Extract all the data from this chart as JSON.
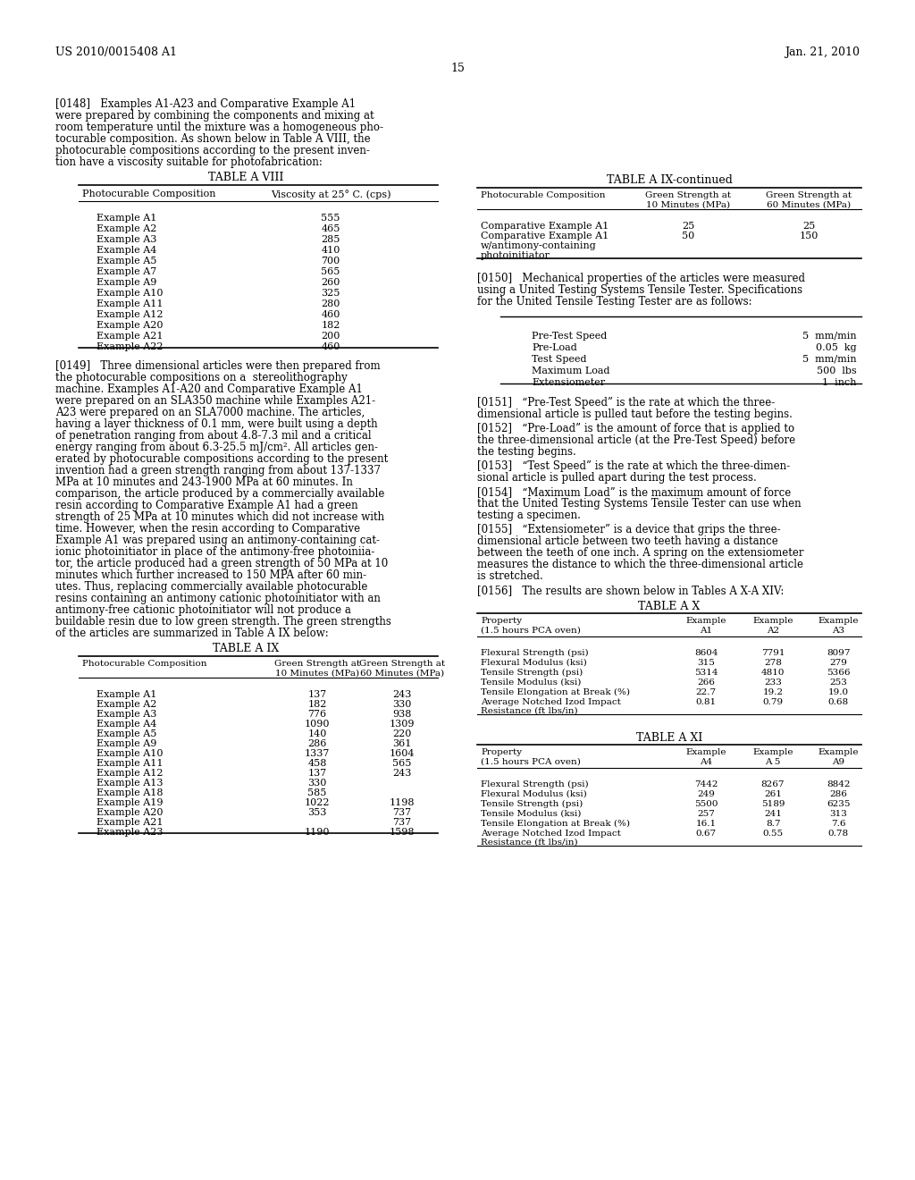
{
  "header_left": "US 2010/0015408 A1",
  "header_right": "Jan. 21, 2010",
  "page_number": "15",
  "bg_color": "#ffffff",
  "table_a8_title": "TABLE A VIII",
  "table_a8_col1": "Photocurable Composition",
  "table_a8_col2": "Viscosity at 25° C. (cps)",
  "table_a8_rows": [
    [
      "Example A1",
      "555"
    ],
    [
      "Example A2",
      "465"
    ],
    [
      "Example A3",
      "285"
    ],
    [
      "Example A4",
      "410"
    ],
    [
      "Example A5",
      "700"
    ],
    [
      "Example A7",
      "565"
    ],
    [
      "Example A9",
      "260"
    ],
    [
      "Example A10",
      "325"
    ],
    [
      "Example A11",
      "280"
    ],
    [
      "Example A12",
      "460"
    ],
    [
      "Example A20",
      "182"
    ],
    [
      "Example A21",
      "200"
    ],
    [
      "Example A22",
      "460"
    ]
  ],
  "table_a9_title": "TABLE A IX",
  "table_a9_rows": [
    [
      "Example A1",
      "137",
      "243"
    ],
    [
      "Example A2",
      "182",
      "330"
    ],
    [
      "Example A3",
      "776",
      "938"
    ],
    [
      "Example A4",
      "1090",
      "1309"
    ],
    [
      "Example A5",
      "140",
      "220"
    ],
    [
      "Example A9",
      "286",
      "361"
    ],
    [
      "Example A10",
      "1337",
      "1604"
    ],
    [
      "Example A11",
      "458",
      "565"
    ],
    [
      "Example A12",
      "137",
      "243"
    ],
    [
      "Example A13",
      "330",
      ""
    ],
    [
      "Example A18",
      "585",
      ""
    ],
    [
      "Example A19",
      "1022",
      "1198"
    ],
    [
      "Example A20",
      "353",
      "737"
    ],
    [
      "Example A21",
      "",
      "737"
    ],
    [
      "Example A23",
      "1190",
      "1598"
    ]
  ],
  "table_a9_cont_title": "TABLE A IX-continued",
  "table_a9_cont_rows": [
    [
      "Comparative Example A1",
      "25",
      "25"
    ],
    [
      "Comparative Example A1",
      "50",
      "150",
      "w/antimony-containing",
      "photoinitiator"
    ]
  ],
  "tester_specs": [
    [
      "Pre-Test Speed",
      "5  mm/min"
    ],
    [
      "Pre-Load",
      "0.05  kg"
    ],
    [
      "Test Speed",
      "5  mm/min"
    ],
    [
      "Maximum Load",
      "500  lbs"
    ],
    [
      "Extensiometer",
      "1  inch"
    ]
  ],
  "table_ax_title": "TABLE A X",
  "table_ax_rows": [
    [
      "Flexural Strength (psi)",
      "8604",
      "7791",
      "8097"
    ],
    [
      "Flexural Modulus (ksi)",
      "315",
      "278",
      "279"
    ],
    [
      "Tensile Strength (psi)",
      "5314",
      "4810",
      "5366"
    ],
    [
      "Tensile Modulus (ksi)",
      "266",
      "233",
      "253"
    ],
    [
      "Tensile Elongation at Break (%)",
      "22.7",
      "19.2",
      "19.0"
    ],
    [
      "Average Notched Izod Impact",
      "0.81",
      "0.79",
      "0.68",
      "Resistance (ft lbs/in)"
    ]
  ],
  "table_axi_title": "TABLE A XI",
  "table_axi_rows": [
    [
      "Flexural Strength (psi)",
      "7442",
      "8267",
      "8842"
    ],
    [
      "Flexural Modulus (ksi)",
      "249",
      "261",
      "286"
    ],
    [
      "Tensile Strength (psi)",
      "5500",
      "5189",
      "6235"
    ],
    [
      "Tensile Modulus (ksi)",
      "257",
      "241",
      "313"
    ],
    [
      "Tensile Elongation at Break (%)",
      "16.1",
      "8.7",
      "7.6"
    ],
    [
      "Average Notched Izod Impact",
      "0.67",
      "0.55",
      "0.78",
      "Resistance (ft lbs/in)"
    ]
  ]
}
